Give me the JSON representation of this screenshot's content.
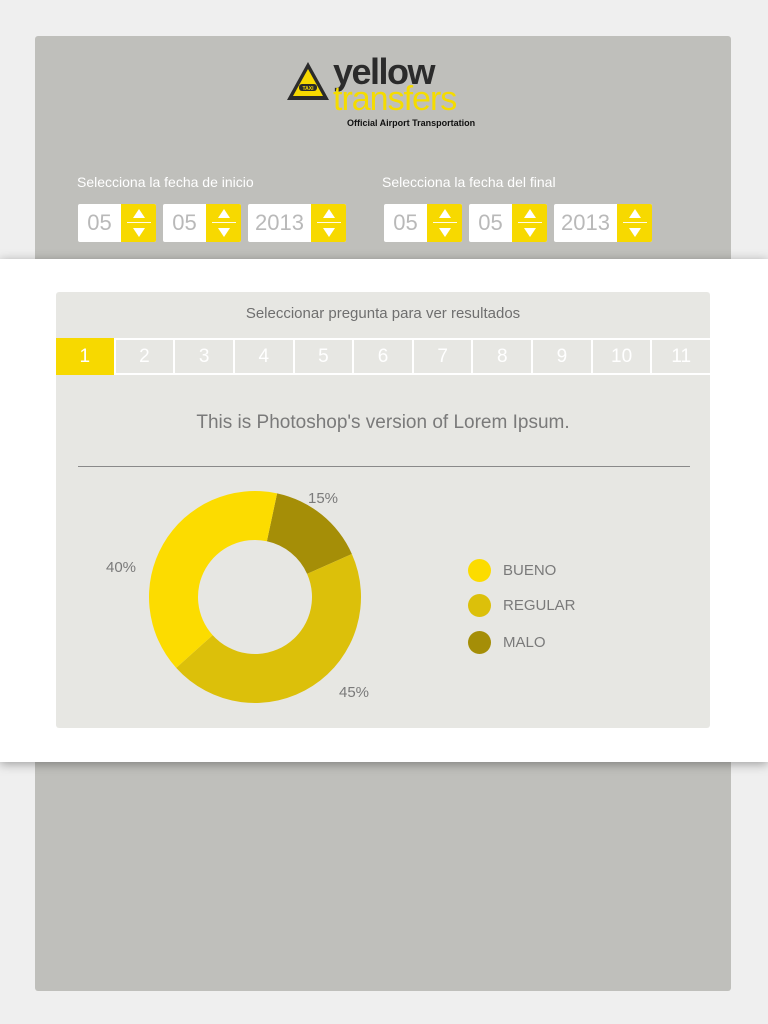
{
  "brand": {
    "name_part1": "yellow",
    "name_part2": "transfers",
    "tagline": "Official Airport Transportation",
    "badge": "TAXI"
  },
  "date_range": {
    "start": {
      "label": "Selecciona la fecha de inicio",
      "day": "05",
      "month": "05",
      "year": "2013"
    },
    "end": {
      "label": "Selecciona la fecha del final",
      "day": "05",
      "month": "05",
      "year": "2013"
    }
  },
  "results": {
    "header": "Seleccionar pregunta para ver resultados",
    "tabs": [
      "1",
      "2",
      "3",
      "4",
      "5",
      "6",
      "7",
      "8",
      "9",
      "10",
      "11"
    ],
    "active_tab": "1",
    "question": "This is Photoshop's version  of Lorem Ipsum."
  },
  "colors": {
    "accent": "#f7d900",
    "bueno": "#fcdc00",
    "regular": "#dcc00a",
    "malo": "#a58e07"
  },
  "chart_data": {
    "type": "pie",
    "categories": [
      "BUENO",
      "REGULAR",
      "MALO"
    ],
    "values": [
      40,
      45,
      15
    ],
    "labels": [
      "40%",
      "45%",
      "15%"
    ],
    "colors": [
      "#fcdc00",
      "#dcc00a",
      "#a58e07"
    ],
    "legend": "right"
  }
}
